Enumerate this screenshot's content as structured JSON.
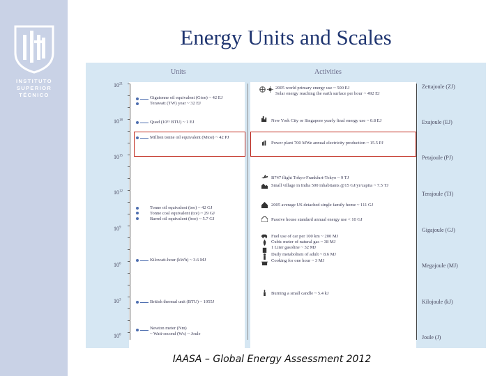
{
  "sidebar": {
    "logo_line1": "INSTITUTO",
    "logo_line2": "SUPERIOR",
    "logo_line3": "TÉCNICO"
  },
  "slide": {
    "title": "Energy Units and Scales",
    "footer": "IAASA – Global Energy Assessment 2012"
  },
  "figure": {
    "units_header": "Units",
    "activities_header": "Activities",
    "left_scale": [
      {
        "base": "10",
        "exp": "21"
      },
      {
        "base": "10",
        "exp": "18"
      },
      {
        "base": "10",
        "exp": "15"
      },
      {
        "base": "10",
        "exp": "12"
      },
      {
        "base": "10",
        "exp": "9"
      },
      {
        "base": "10",
        "exp": "6"
      },
      {
        "base": "10",
        "exp": "3"
      },
      {
        "base": "10",
        "exp": "0"
      }
    ],
    "right_scale": [
      "Zettajoule (ZJ)",
      "Exajoule (EJ)",
      "Petajoule (PJ)",
      "Terajoule (TJ)",
      "Gigajoule (GJ)",
      "Megajoule (MJ)",
      "Kilojoule (kJ)",
      "Joule (J)"
    ],
    "units": [
      "Gigatonne oil equivalent (Gtoe) ~ 42 EJ",
      "Terawatt (TW) year ~ 32 EJ",
      "Quad (10¹⁵ BTU) ~ 1 EJ",
      "Million tonne oil equivalent (Mtoe) ~ 42 PJ",
      "Tonne oil equivalent (toe) ~ 42 GJ",
      "Tonne coal equivalent (tce) ~ 29 GJ",
      "Barrel oil equivalent (boe) ~ 5.7 GJ",
      "Kilowatt-hour (kWh) ~ 3.6 MJ",
      "British thermal unit (BTU) ~ 1055J",
      "Newton meter (Nm)",
      "~ Watt-second (Ws) ~ Joule"
    ],
    "activities": [
      "2005 world primary energy use ~ 500 EJ",
      "Solar energy reaching the earth surface per hour ~ 492 EJ",
      "New York City or Singapore yearly final energy use ~ 0.8 EJ",
      "Power plant 700 MWe annual electricity production ~ 15.5 PJ",
      "B747 flight Tokyo-Frankfurt-Tokyo ~ 9 TJ",
      "Small village in India 500 inhabitants @15 GJ/yr/capita ~ 7.5 TJ",
      "2005 average US detached single family home ~ 111 GJ",
      "Passive house standard annual energy use < 10 GJ",
      "Fuel use of car per 100 km ~ 200 MJ",
      "Cubic meter of natural gas ~ 38 MJ",
      "1 Liter gasoline ~ 32 MJ",
      "Daily metabolism of adult ~ 8.6 MJ",
      "Cooking for one hour ~ 3 MJ",
      "Burning a small candle ~ 5.4 kJ"
    ]
  }
}
